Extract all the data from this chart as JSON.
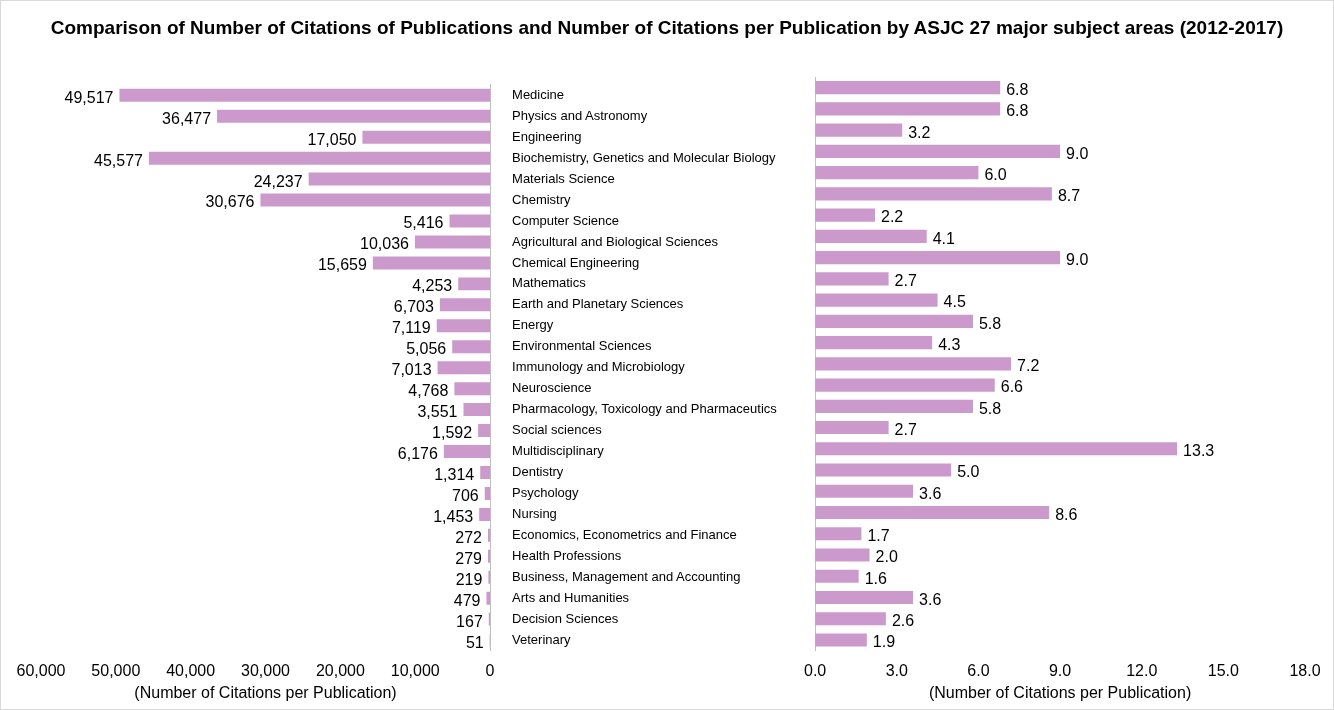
{
  "chart_data": [
    {
      "type": "bar",
      "orientation": "horizontal",
      "title": "Comparison of Number of Citations of Publications and Number of Citations per Publication by ASJC 27 major subject areas (2012-2017)",
      "xlabel": "(Number of Citations per Publication)",
      "color": "#cc99cc",
      "categories": [
        "Medicine",
        "Physics and Astronomy",
        "Engineering",
        "Biochemistry, Genetics and Molecular Biology",
        "Materials Science",
        "Chemistry",
        "Computer Science",
        "Agricultural and Biological Sciences",
        "Chemical Engineering",
        "Mathematics",
        "Earth and Planetary Sciences",
        "Energy",
        "Environmental Sciences",
        "Immunology and Microbiology",
        "Neuroscience",
        "Pharmacology, Toxicology and Pharmaceutics",
        "Social sciences",
        "Multidisciplinary",
        "Dentistry",
        "Psychology",
        "Nursing",
        "Economics, Econometrics and Finance",
        "Health Professions",
        "Business, Management and Accounting",
        "Arts and Humanities",
        "Decision Sciences",
        "Veterinary"
      ],
      "values": [
        49517,
        36477,
        17050,
        45577,
        24237,
        30676,
        5416,
        10036,
        15659,
        4253,
        6703,
        7119,
        5056,
        7013,
        4768,
        3551,
        1592,
        6176,
        1314,
        706,
        1453,
        272,
        279,
        219,
        479,
        167,
        51
      ],
      "value_labels": [
        "49,517",
        "36,477",
        "17,050",
        "45,577",
        "24,237",
        "30,676",
        "5,416",
        "10,036",
        "15,659",
        "4,253",
        "6,703",
        "7,119",
        "5,056",
        "7,013",
        "4,768",
        "3,551",
        "1,592",
        "6,176",
        "1,314",
        "706",
        "1,453",
        "272",
        "279",
        "219",
        "479",
        "167",
        "51"
      ],
      "xlim": [
        60000,
        0
      ],
      "xticks": [
        {
          "value": 60000,
          "label": "60,000"
        },
        {
          "value": 50000,
          "label": "50,000"
        },
        {
          "value": 40000,
          "label": "40,000"
        },
        {
          "value": 30000,
          "label": "30,000"
        },
        {
          "value": 20000,
          "label": "20,000"
        },
        {
          "value": 10000,
          "label": "10,000"
        },
        0
      ]
    },
    {
      "type": "bar",
      "orientation": "horizontal",
      "xlabel": "(Number of Citations per Publication)",
      "color": "#cc99cc",
      "tick_labels": "x",
      "categories": [
        null,
        null,
        null,
        null,
        null,
        null,
        null,
        null,
        null,
        null,
        null,
        null,
        null,
        null,
        null,
        null,
        null,
        null,
        null,
        null,
        null,
        null,
        null,
        null,
        null,
        null,
        null
      ],
      "values": [
        6.8,
        6.8,
        3.2,
        9.0,
        6.0,
        8.7,
        2.2,
        4.1,
        9.0,
        2.7,
        4.5,
        5.8,
        4.3,
        7.2,
        6.6,
        5.8,
        2.7,
        13.3,
        5.0,
        3.6,
        8.6,
        1.7,
        2.0,
        1.6,
        3.6,
        2.6,
        1.9
      ],
      "value_labels": [
        "6.8",
        "6.8",
        "3.2",
        "9.0",
        "6.0",
        "8.7",
        "2.2",
        "4.1",
        "9.0",
        "2.7",
        "4.5",
        "5.8",
        "4.3",
        "7.2",
        "6.6",
        "5.8",
        "2.7",
        "13.3",
        "5.0",
        "3.6",
        "8.6",
        "1.7",
        "2.0",
        "1.6",
        "3.6",
        "2.6",
        "1.9"
      ],
      "xlim": [
        0,
        18
      ],
      "xticks": [
        {
          "value": 0,
          "label": "0.0"
        },
        {
          "value": 3,
          "label": "3.0"
        },
        {
          "value": 6,
          "label": "6.0"
        },
        {
          "value": 9,
          "label": "9.0"
        },
        {
          "value": 12,
          "label": "12.0"
        },
        {
          "value": 15,
          "label": "15.0"
        },
        {
          "value": 18,
          "label": "18.0"
        }
      ]
    }
  ]
}
